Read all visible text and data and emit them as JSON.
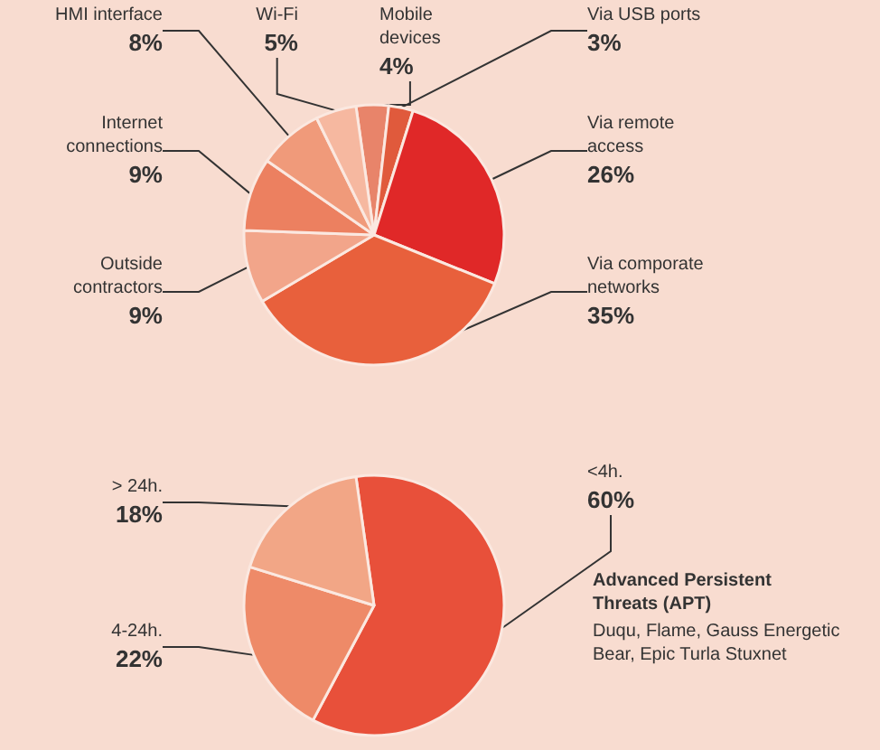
{
  "chart_data": [
    {
      "type": "pie",
      "categories": [
        "Mobile devices",
        "Via USB ports",
        "Via remote access",
        "Via comporate networks",
        "Outside contractors",
        "Internet connections",
        "HMI interface",
        "Wi-Fi"
      ],
      "values": [
        4,
        3,
        26,
        35,
        9,
        9,
        8,
        5
      ],
      "value_labels": [
        "4%",
        "3%",
        "26%",
        "35%",
        "9%",
        "9%",
        "8%",
        "5%"
      ],
      "colors": [
        "#e8846a",
        "#e05a3c",
        "#e02828",
        "#e8603c",
        "#f2a58a",
        "#ec8060",
        "#f09a7a",
        "#f6b8a0"
      ]
    },
    {
      "type": "pie",
      "categories": [
        "<4h.",
        "4-24h.",
        "> 24h."
      ],
      "values": [
        60,
        22,
        18
      ],
      "value_labels": [
        "60%",
        "22%",
        "18%"
      ],
      "colors": [
        "#e8503a",
        "#ee8a68",
        "#f2a686"
      ],
      "annotations": [
        "Advanced Persistent Threats (APT)",
        "Duqu, Flame, Gauss Energetic Bear, Epic Turla Stuxnet"
      ]
    }
  ]
}
